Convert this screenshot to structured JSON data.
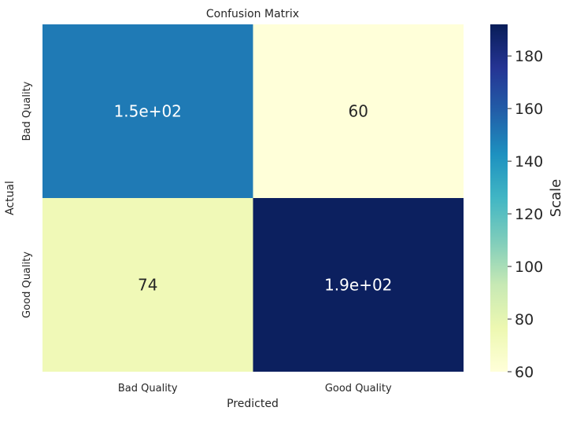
{
  "chart_data": {
    "type": "heatmap",
    "title": "Confusion Matrix",
    "xlabel": "Predicted",
    "ylabel": "Actual",
    "x_categories": [
      "Bad Quality",
      "Good Quality"
    ],
    "y_categories": [
      "Bad Quality",
      "Good Quality"
    ],
    "values": [
      [
        150,
        60
      ],
      [
        74,
        190
      ]
    ],
    "annotations": [
      [
        "1.5e+02",
        "60"
      ],
      [
        "74",
        "1.9e+02"
      ]
    ],
    "colorbar": {
      "label": "Scale",
      "range": [
        60,
        192
      ],
      "ticks": [
        60,
        80,
        100,
        120,
        140,
        160,
        180
      ],
      "tick_labels": [
        "60",
        "80",
        "100",
        "120",
        "140",
        "160",
        "180"
      ],
      "colormap": "YlGnBu",
      "colors": [
        "#ffffd9",
        "#edf8b1",
        "#c7e9b4",
        "#7fcdbb",
        "#41b6c4",
        "#1d91c0",
        "#225ea8",
        "#253494",
        "#081d58"
      ]
    },
    "grid": false
  }
}
